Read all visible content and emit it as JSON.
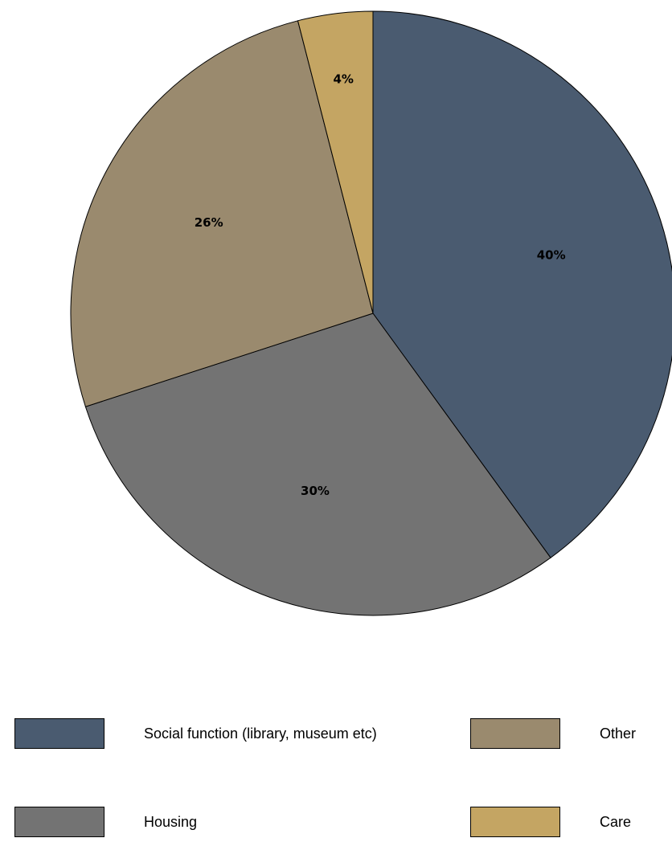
{
  "chart_data": {
    "type": "pie",
    "title": "",
    "slices": [
      {
        "name": "Social function (library, museum etc)",
        "value": 40,
        "label": "40%",
        "color": "#4a5b70"
      },
      {
        "name": "Housing",
        "value": 30,
        "label": "30%",
        "color": "#737373"
      },
      {
        "name": "Other",
        "value": 26,
        "label": "26%",
        "color": "#9a8a6e"
      },
      {
        "name": "Care",
        "value": 4,
        "label": "4%",
        "color": "#c4a563"
      }
    ],
    "legend_position": "bottom"
  },
  "legend": [
    {
      "label": "Social function (library, museum etc)",
      "color": "#4a5b70"
    },
    {
      "label": "Other",
      "color": "#9a8a6e"
    },
    {
      "label": "Housing",
      "color": "#737373"
    },
    {
      "label": "Care",
      "color": "#c4a563"
    }
  ]
}
